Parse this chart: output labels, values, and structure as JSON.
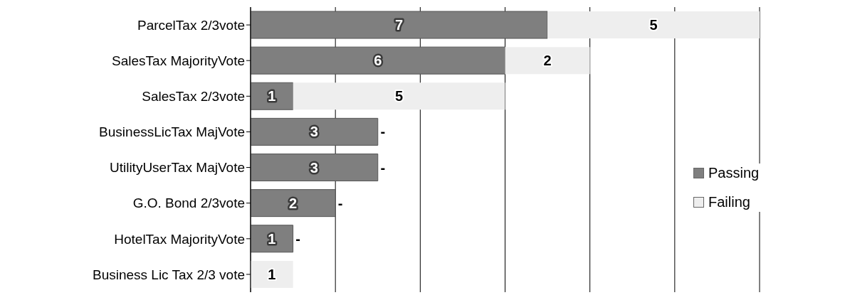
{
  "chart_data": {
    "type": "bar",
    "orientation": "horizontal",
    "stacked": true,
    "categories": [
      "ParcelTax 2/3vote",
      "SalesTax MajorityVote",
      "SalesTax 2/3vote",
      "BusinessLicTax MajVote",
      "UtilityUserTax MajVote",
      "G.O. Bond 2/3vote",
      "HotelTax MajorityVote",
      "Business Lic Tax 2/3 vote"
    ],
    "series": [
      {
        "name": "Passing",
        "color": "#7f7f7f",
        "values": [
          7,
          6,
          1,
          3,
          3,
          2,
          1,
          0
        ],
        "value_labels": [
          "7",
          "6",
          "1",
          "3",
          "3",
          "2",
          "1",
          null
        ]
      },
      {
        "name": "Failing",
        "color": "#eeeeee",
        "values": [
          5,
          2,
          5,
          0,
          0,
          0,
          0,
          1
        ],
        "value_labels": [
          "5",
          "2",
          "5",
          "-",
          "-",
          "-",
          "-",
          "1"
        ]
      }
    ],
    "tick_labels": "y",
    "grid": "x",
    "legend": "right"
  }
}
